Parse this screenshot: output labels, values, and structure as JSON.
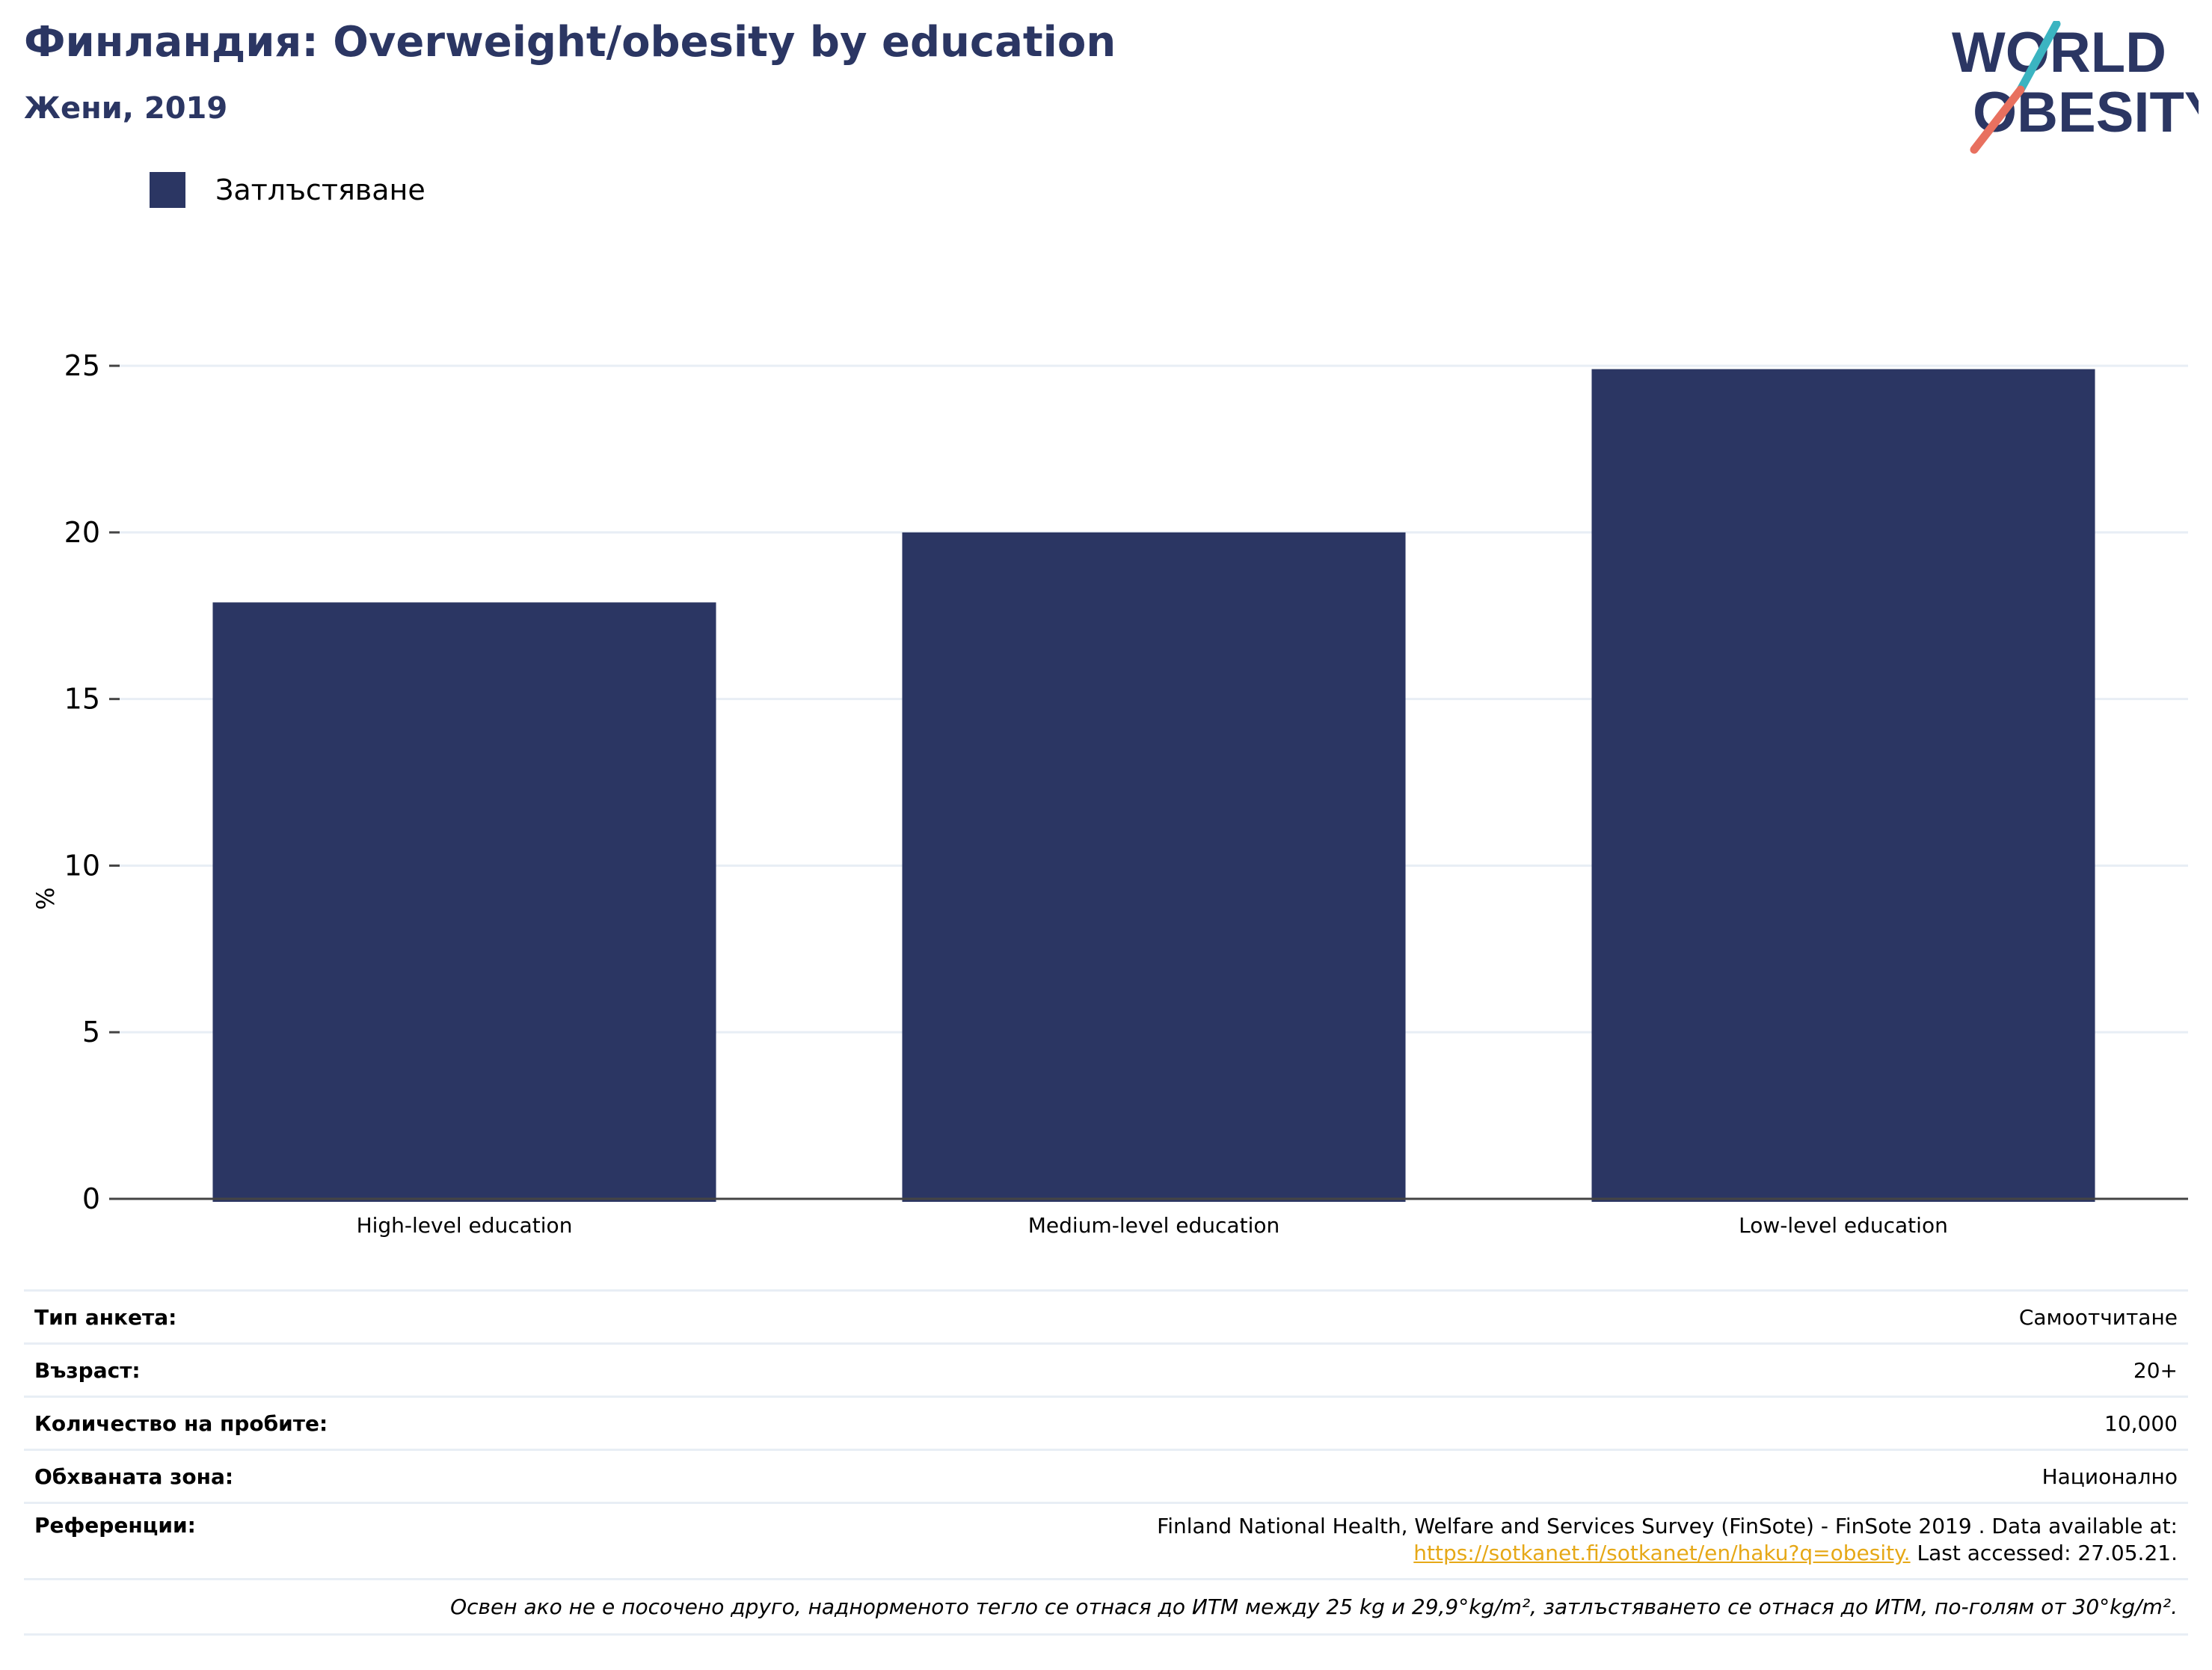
{
  "header": {
    "title": "Финландия: Overweight/obesity by education",
    "subtitle": "Жени, 2019"
  },
  "logo": {
    "line1": "WORLD",
    "line2": "OBESITY",
    "colors": {
      "text": "#2b3663",
      "slash_top": "#3bb4c1",
      "slash_bottom": "#e8705f"
    }
  },
  "legend": {
    "items": [
      {
        "label": "Затлъстяване",
        "color": "#2b3663"
      }
    ]
  },
  "chart_data": {
    "type": "bar",
    "categories": [
      "High-level education",
      "Medium-level education",
      "Low-level education"
    ],
    "series": [
      {
        "name": "Затлъстяване",
        "values": [
          17.9,
          20.0,
          24.9
        ],
        "color": "#2b3663"
      }
    ],
    "ylabel": "%",
    "xlabel": "",
    "ylim": [
      0,
      27
    ],
    "yticks": [
      0,
      5,
      10,
      15,
      20,
      25
    ],
    "grid": true,
    "legend_position": "top-left"
  },
  "meta": {
    "rows": [
      {
        "key": "Тип анкета:",
        "value": "Самоотчитане"
      },
      {
        "key": "Възраст:",
        "value": "20+"
      },
      {
        "key": "Количество на пробите:",
        "value": "10,000"
      },
      {
        "key": "Обхваната зона:",
        "value": "Национално"
      }
    ],
    "references": {
      "key": "Референции:",
      "line1": "Finland National Health, Welfare and Services Survey (FinSote) - FinSote 2019 . Data available at:",
      "link": "https://sotkanet.fi/sotkanet/en/haku?q=obesity.",
      "accessed": " Last accessed: 27.05.21."
    },
    "note": "Освен ако не е посочено друго, наднорменото тегло се отнася до ИТМ между 25 kg и 29,9°kg/m², затлъстяването се отнася до ИТМ, по-голям от 30°kg/m²."
  }
}
